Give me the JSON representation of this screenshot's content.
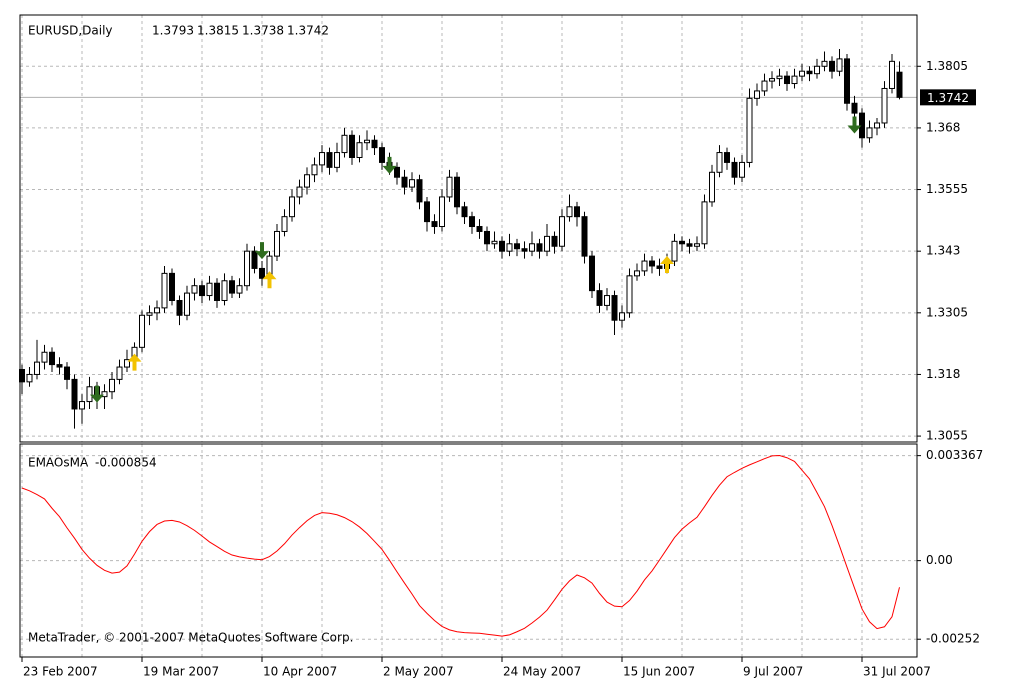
{
  "chart_data": [
    {
      "type": "candlestick",
      "title": "EURUSD,Daily",
      "categories": [
        "23 Feb 2007",
        null,
        null,
        null,
        null,
        null,
        null,
        null,
        null,
        null,
        null,
        null,
        null,
        null,
        null,
        null,
        "19 Mar 2007",
        null,
        null,
        null,
        null,
        null,
        null,
        null,
        null,
        null,
        null,
        null,
        null,
        null,
        null,
        null,
        "10 Apr 2007",
        null,
        null,
        null,
        null,
        null,
        null,
        null,
        null,
        null,
        null,
        null,
        null,
        null,
        null,
        null,
        "2 May 2007",
        null,
        null,
        null,
        null,
        null,
        null,
        null,
        null,
        null,
        null,
        null,
        null,
        null,
        null,
        null,
        "24 May 2007",
        null,
        null,
        null,
        null,
        null,
        null,
        null,
        null,
        null,
        null,
        null,
        null,
        null,
        null,
        null,
        "15 Jun 2007",
        null,
        null,
        null,
        null,
        null,
        null,
        null,
        null,
        null,
        null,
        null,
        null,
        null,
        null,
        null,
        "9 Jul 2007",
        null,
        null,
        null,
        null,
        null,
        null,
        null,
        null,
        null,
        null,
        null,
        null,
        null,
        null,
        null,
        "31 Jul 2007",
        null,
        null,
        null,
        null,
        null
      ],
      "ohlc": [
        [
          1.319,
          1.32,
          1.314,
          1.3165
        ],
        [
          1.3165,
          1.3195,
          1.3155,
          1.318
        ],
        [
          1.318,
          1.325,
          1.317,
          1.3205
        ],
        [
          1.3205,
          1.324,
          1.319,
          1.3225
        ],
        [
          1.3225,
          1.3235,
          1.3185,
          1.32
        ],
        [
          1.32,
          1.3215,
          1.318,
          1.3195
        ],
        [
          1.3195,
          1.3205,
          1.315,
          1.317
        ],
        [
          1.317,
          1.318,
          1.307,
          1.311
        ],
        [
          1.311,
          1.314,
          1.308,
          1.3125
        ],
        [
          1.3125,
          1.3175,
          1.311,
          1.3155
        ],
        [
          1.3155,
          1.3165,
          1.311,
          1.3135
        ],
        [
          1.3135,
          1.316,
          1.311,
          1.3145
        ],
        [
          1.3145,
          1.3185,
          1.313,
          1.317
        ],
        [
          1.317,
          1.321,
          1.316,
          1.3195
        ],
        [
          1.3195,
          1.323,
          1.3185,
          1.321
        ],
        [
          1.321,
          1.3245,
          1.32,
          1.3235
        ],
        [
          1.3235,
          1.331,
          1.3225,
          1.33
        ],
        [
          1.33,
          1.332,
          1.328,
          1.3305
        ],
        [
          1.3305,
          1.333,
          1.329,
          1.3315
        ],
        [
          1.3315,
          1.34,
          1.3305,
          1.3385
        ],
        [
          1.3385,
          1.3395,
          1.332,
          1.333
        ],
        [
          1.333,
          1.334,
          1.328,
          1.33
        ],
        [
          1.33,
          1.336,
          1.329,
          1.3345
        ],
        [
          1.3345,
          1.3375,
          1.333,
          1.336
        ],
        [
          1.336,
          1.337,
          1.3325,
          1.334
        ],
        [
          1.334,
          1.338,
          1.333,
          1.3365
        ],
        [
          1.3365,
          1.3375,
          1.3315,
          1.333
        ],
        [
          1.333,
          1.3385,
          1.332,
          1.337
        ],
        [
          1.337,
          1.338,
          1.3335,
          1.3345
        ],
        [
          1.3345,
          1.3375,
          1.3335,
          1.336
        ],
        [
          1.336,
          1.3445,
          1.335,
          1.343
        ],
        [
          1.343,
          1.344,
          1.3385,
          1.3395
        ],
        [
          1.3395,
          1.341,
          1.336,
          1.3375
        ],
        [
          1.3375,
          1.343,
          1.3365,
          1.342
        ],
        [
          1.342,
          1.3485,
          1.341,
          1.347
        ],
        [
          1.347,
          1.3515,
          1.346,
          1.35
        ],
        [
          1.35,
          1.3555,
          1.349,
          1.354
        ],
        [
          1.354,
          1.3575,
          1.3525,
          1.356
        ],
        [
          1.356,
          1.36,
          1.3545,
          1.3585
        ],
        [
          1.3585,
          1.362,
          1.357,
          1.3605
        ],
        [
          1.3605,
          1.3645,
          1.359,
          1.363
        ],
        [
          1.363,
          1.364,
          1.3585,
          1.36
        ],
        [
          1.36,
          1.365,
          1.359,
          1.363
        ],
        [
          1.363,
          1.368,
          1.362,
          1.3665
        ],
        [
          1.3665,
          1.3675,
          1.3605,
          1.362
        ],
        [
          1.362,
          1.3665,
          1.361,
          1.365
        ],
        [
          1.365,
          1.3675,
          1.3635,
          1.3655
        ],
        [
          1.3655,
          1.3665,
          1.3625,
          1.364
        ],
        [
          1.364,
          1.365,
          1.3595,
          1.361
        ],
        [
          1.361,
          1.363,
          1.3585,
          1.36
        ],
        [
          1.36,
          1.361,
          1.3565,
          1.358
        ],
        [
          1.358,
          1.3595,
          1.3545,
          1.356
        ],
        [
          1.356,
          1.359,
          1.355,
          1.3575
        ],
        [
          1.3575,
          1.3585,
          1.3515,
          1.353
        ],
        [
          1.353,
          1.354,
          1.347,
          1.349
        ],
        [
          1.349,
          1.3505,
          1.3465,
          1.348
        ],
        [
          1.348,
          1.3555,
          1.347,
          1.354
        ],
        [
          1.354,
          1.3595,
          1.353,
          1.358
        ],
        [
          1.358,
          1.359,
          1.3505,
          1.352
        ],
        [
          1.352,
          1.353,
          1.3485,
          1.35
        ],
        [
          1.35,
          1.351,
          1.3465,
          1.348
        ],
        [
          1.348,
          1.3495,
          1.3455,
          1.347
        ],
        [
          1.347,
          1.348,
          1.343,
          1.3445
        ],
        [
          1.3445,
          1.347,
          1.3435,
          1.345
        ],
        [
          1.345,
          1.346,
          1.3415,
          1.343
        ],
        [
          1.343,
          1.3465,
          1.342,
          1.3445
        ],
        [
          1.3445,
          1.3455,
          1.342,
          1.3435
        ],
        [
          1.3435,
          1.345,
          1.3415,
          1.343
        ],
        [
          1.343,
          1.347,
          1.342,
          1.3445
        ],
        [
          1.3445,
          1.3455,
          1.3415,
          1.343
        ],
        [
          1.343,
          1.3485,
          1.342,
          1.346
        ],
        [
          1.346,
          1.347,
          1.3425,
          1.344
        ],
        [
          1.344,
          1.3515,
          1.343,
          1.35
        ],
        [
          1.35,
          1.3545,
          1.349,
          1.352
        ],
        [
          1.352,
          1.353,
          1.348,
          1.35
        ],
        [
          1.35,
          1.351,
          1.3405,
          1.342
        ],
        [
          1.342,
          1.343,
          1.3335,
          1.335
        ],
        [
          1.335,
          1.3365,
          1.3305,
          1.332
        ],
        [
          1.332,
          1.3355,
          1.331,
          1.334
        ],
        [
          1.334,
          1.335,
          1.326,
          1.329
        ],
        [
          1.329,
          1.332,
          1.3275,
          1.3305
        ],
        [
          1.3305,
          1.3395,
          1.3295,
          1.338
        ],
        [
          1.338,
          1.3405,
          1.337,
          1.339
        ],
        [
          1.339,
          1.3425,
          1.338,
          1.341
        ],
        [
          1.341,
          1.342,
          1.3385,
          1.34
        ],
        [
          1.34,
          1.3415,
          1.338,
          1.3395
        ],
        [
          1.3395,
          1.3425,
          1.3385,
          1.341
        ],
        [
          1.341,
          1.3465,
          1.34,
          1.345
        ],
        [
          1.345,
          1.346,
          1.343,
          1.3445
        ],
        [
          1.3445,
          1.3455,
          1.3425,
          1.344
        ],
        [
          1.344,
          1.346,
          1.343,
          1.3445
        ],
        [
          1.3445,
          1.3545,
          1.3435,
          1.353
        ],
        [
          1.353,
          1.3605,
          1.352,
          1.359
        ],
        [
          1.359,
          1.3645,
          1.358,
          1.363
        ],
        [
          1.363,
          1.364,
          1.3595,
          1.361
        ],
        [
          1.361,
          1.362,
          1.3565,
          1.358
        ],
        [
          1.358,
          1.3625,
          1.357,
          1.361
        ],
        [
          1.361,
          1.376,
          1.36,
          1.374
        ],
        [
          1.374,
          1.377,
          1.3725,
          1.3755
        ],
        [
          1.3755,
          1.379,
          1.3745,
          1.3775
        ],
        [
          1.3775,
          1.3795,
          1.376,
          1.378
        ],
        [
          1.378,
          1.38,
          1.3765,
          1.3785
        ],
        [
          1.3785,
          1.3795,
          1.3755,
          1.377
        ],
        [
          1.377,
          1.38,
          1.376,
          1.3785
        ],
        [
          1.3785,
          1.381,
          1.3775,
          1.3795
        ],
        [
          1.3795,
          1.3805,
          1.3775,
          1.379
        ],
        [
          1.379,
          1.382,
          1.378,
          1.3805
        ],
        [
          1.3805,
          1.3835,
          1.3795,
          1.3815
        ],
        [
          1.3815,
          1.3825,
          1.378,
          1.3795
        ],
        [
          1.3795,
          1.384,
          1.3785,
          1.382
        ],
        [
          1.382,
          1.383,
          1.3715,
          1.373
        ],
        [
          1.373,
          1.3745,
          1.369,
          1.371
        ],
        [
          1.371,
          1.372,
          1.364,
          1.366
        ],
        [
          1.366,
          1.3695,
          1.365,
          1.368
        ],
        [
          1.368,
          1.37,
          1.3665,
          1.369
        ],
        [
          1.369,
          1.3775,
          1.368,
          1.376
        ],
        [
          1.376,
          1.383,
          1.375,
          1.3815
        ],
        [
          1.3793,
          1.3815,
          1.3738,
          1.3742
        ]
      ],
      "bull_color": "#ffffff",
      "bear_color": "#000000",
      "ylim": [
        1.3043,
        1.3909
      ],
      "yticks": [
        1.3805,
        1.368,
        1.3555,
        1.343,
        1.3305,
        1.318,
        1.3055
      ],
      "grid": true,
      "buy_arrows": {
        "color": "#f2c200",
        "x": [
          15,
          33,
          86
        ],
        "values": [
          1.3206,
          1.3373,
          1.3404
        ]
      },
      "sell_arrows": {
        "color": "#2e6b1e",
        "x": [
          10,
          32,
          49,
          111
        ],
        "values": [
          1.3139,
          1.343,
          1.3603,
          1.3685
        ]
      }
    },
    {
      "type": "line",
      "title": "EMAOsMA",
      "color": "#ff0000",
      "credit": "MetaTrader, © 2001-2007 MetaQuotes Software Corp.",
      "values": [
        0.00233,
        0.00224,
        0.00212,
        0.00198,
        0.00168,
        0.00141,
        0.00105,
        0.00072,
        0.00036,
        8e-05,
        -0.00015,
        -0.00031,
        -0.0004,
        -0.00037,
        -0.00017,
        0.00021,
        0.00062,
        0.00093,
        0.00116,
        0.00127,
        0.00129,
        0.00124,
        0.00112,
        0.00097,
        0.00079,
        0.0006,
        0.00045,
        0.0003,
        0.00018,
        0.00012,
        8e-05,
        5e-05,
        3e-05,
        0.00013,
        0.00031,
        0.00054,
        0.00082,
        0.00106,
        0.00128,
        0.00145,
        0.00154,
        0.00152,
        0.00147,
        0.00138,
        0.00125,
        0.00108,
        0.00087,
        0.00062,
        0.00036,
        1e-05,
        -0.00036,
        -0.00072,
        -0.00107,
        -0.00144,
        -0.00169,
        -0.00192,
        -0.00211,
        -0.00222,
        -0.00228,
        -0.00231,
        -0.00232,
        -0.00233,
        -0.00236,
        -0.00239,
        -0.00242,
        -0.00238,
        -0.00228,
        -0.00217,
        -0.002,
        -0.00181,
        -0.00159,
        -0.00126,
        -0.00092,
        -0.00065,
        -0.00046,
        -0.00055,
        -0.00072,
        -0.00105,
        -0.00133,
        -0.00146,
        -0.00148,
        -0.00128,
        -0.00098,
        -0.00062,
        -0.00033,
        2e-05,
        0.00038,
        0.00074,
        0.00101,
        0.00121,
        0.00139,
        0.00173,
        0.00209,
        0.00242,
        0.00269,
        0.00283,
        0.00296,
        0.00307,
        0.00317,
        0.00327,
        0.00336,
        0.00337,
        0.0033,
        0.00318,
        0.0029,
        0.00262,
        0.00218,
        0.00173,
        0.00113,
        0.00047,
        -0.00021,
        -0.00088,
        -0.00155,
        -0.00196,
        -0.00218,
        -0.00212,
        -0.0018,
        -0.000854
      ],
      "ylim": [
        -0.00309,
        0.00374
      ],
      "yticks": [
        0.003367,
        {
          "value": 0,
          "label": "0.00"
        },
        -0.00252
      ],
      "grid": true
    }
  ]
}
